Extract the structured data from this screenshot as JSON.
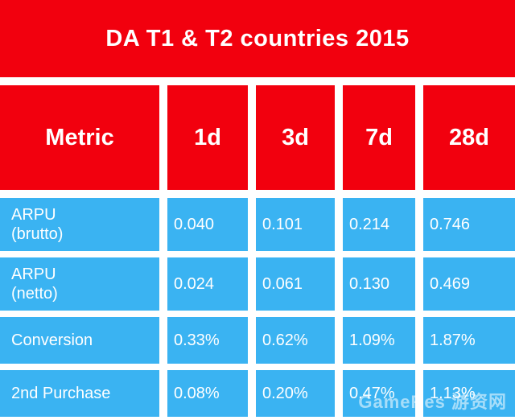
{
  "title": "DA T1 & T2 countries 2015",
  "headers": [
    "Metric",
    "1d",
    "3d",
    "7d",
    "28d"
  ],
  "rows": [
    {
      "metric": [
        "ARPU",
        "(brutto)"
      ],
      "values": [
        "0.040",
        "0.101",
        "0.214",
        "0.746"
      ]
    },
    {
      "metric": [
        "ARPU",
        "(netto)"
      ],
      "values": [
        "0.024",
        "0.061",
        "0.130",
        "0.469"
      ]
    },
    {
      "metric": [
        "Conversion"
      ],
      "values": [
        "0.33%",
        "0.62%",
        "1.09%",
        "1.87%"
      ]
    },
    {
      "metric": [
        "2nd Purchase"
      ],
      "values": [
        "0.08%",
        "0.20%",
        "0.47%",
        "1.13%"
      ]
    }
  ],
  "watermark": "GameRes 游资网",
  "colors": {
    "header_red": "#f2000e",
    "cell_blue": "#3ab3f2",
    "text": "#ffffff"
  }
}
